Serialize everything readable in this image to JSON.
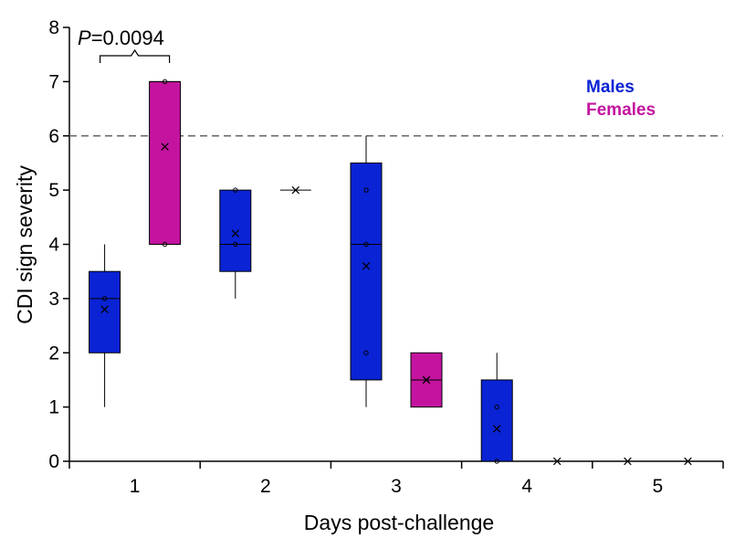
{
  "chart_data": {
    "type": "box",
    "xlabel": "Days post-challenge",
    "ylabel": "CDI sign severity",
    "categories": [
      "1",
      "2",
      "3",
      "4",
      "5"
    ],
    "ylim": [
      0,
      8
    ],
    "yticks": [
      "0",
      "1",
      "2",
      "3",
      "4",
      "5",
      "6",
      "7",
      "8"
    ],
    "reference_line": {
      "y": 6,
      "style": "dashed"
    },
    "annotation": {
      "text_italic": "P",
      "text_rest": "=0.0094",
      "between": [
        "1-Males",
        "1-Females"
      ]
    },
    "legend_position": "top-right",
    "grid": false,
    "series": [
      {
        "name": "Males",
        "color": "#0a23d4",
        "boxes": [
          {
            "x": "1",
            "min": 1,
            "q1": 2,
            "median": 3,
            "q3": 3.5,
            "max": 4,
            "mean": 2.8,
            "points": [
              3
            ]
          },
          {
            "x": "2",
            "min": 3,
            "q1": 3.5,
            "median": 4,
            "q3": 5,
            "max": 5,
            "mean": 4.2,
            "points": [
              4,
              5
            ]
          },
          {
            "x": "3",
            "min": 1,
            "q1": 1.5,
            "median": 4,
            "q3": 5.5,
            "max": 6,
            "mean": 3.6,
            "points": [
              2,
              4,
              5
            ]
          },
          {
            "x": "4",
            "min": 0,
            "q1": 0,
            "median": 0,
            "q3": 1.5,
            "max": 2,
            "mean": 0.6,
            "points": [
              0,
              1
            ]
          },
          {
            "x": "5",
            "min": 0,
            "q1": 0,
            "median": 0,
            "q3": 0,
            "max": 0,
            "mean": 0,
            "points": []
          }
        ]
      },
      {
        "name": "Females",
        "color": "#c4149f",
        "boxes": [
          {
            "x": "1",
            "min": 4,
            "q1": 4,
            "median": 7,
            "q3": 7,
            "max": 7,
            "mean": 5.8,
            "points": [
              4,
              7
            ]
          },
          {
            "x": "2",
            "min": 5,
            "q1": 5,
            "median": 5,
            "q3": 5,
            "max": 5,
            "mean": 5,
            "points": []
          },
          {
            "x": "3",
            "min": 1,
            "q1": 1,
            "median": 1.5,
            "q3": 2,
            "max": 2,
            "mean": 1.5,
            "points": []
          },
          {
            "x": "4",
            "min": 0,
            "q1": 0,
            "median": 0,
            "q3": 0,
            "max": 0,
            "mean": 0,
            "points": []
          },
          {
            "x": "5",
            "min": 0,
            "q1": 0,
            "median": 0,
            "q3": 0,
            "max": 0,
            "mean": 0,
            "points": []
          }
        ]
      }
    ]
  }
}
